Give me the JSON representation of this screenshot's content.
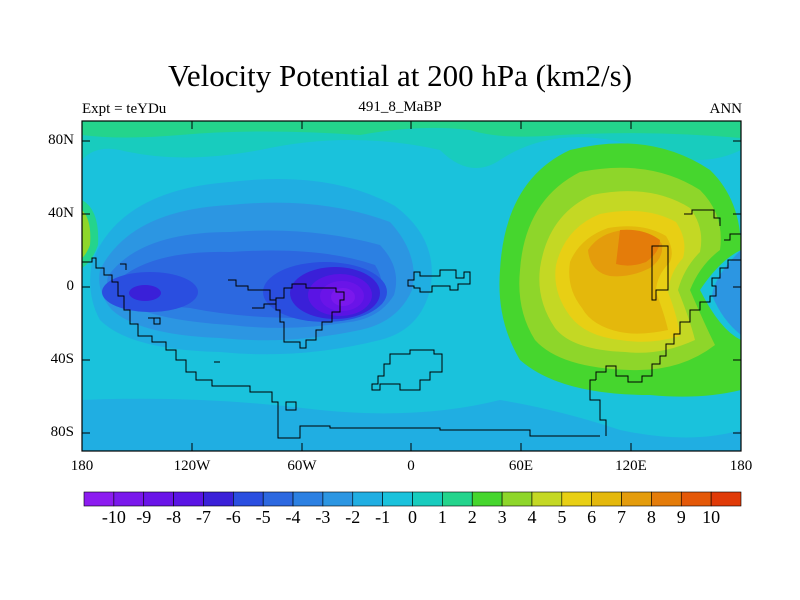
{
  "title": "Velocity Potential at 200 hPa (km2/s)",
  "subtitle": "491_8_MaBP",
  "left_label": "Expt = teYDu",
  "right_label": "ANN",
  "y_ticks": [
    "80N",
    "40N",
    "0",
    "40S",
    "80S"
  ],
  "x_ticks": [
    "180",
    "120W",
    "60W",
    "0",
    "60E",
    "120E",
    "180"
  ],
  "colorbar": {
    "labels": [
      "-10",
      "-9",
      "-8",
      "-7",
      "-6",
      "-5",
      "-4",
      "-3",
      "-2",
      "-1",
      "0",
      "1",
      "2",
      "3",
      "4",
      "5",
      "6",
      "7",
      "8",
      "9",
      "10"
    ],
    "colors": [
      "#8c1cf0",
      "#7a18ec",
      "#6a14e8",
      "#5a14e4",
      "#3a20d8",
      "#2a4ee0",
      "#2c68e0",
      "#2c80e2",
      "#2c96e2",
      "#20aee2",
      "#1ac2dc",
      "#18ccbe",
      "#24d48c",
      "#46d62e",
      "#8ed62a",
      "#c4d824",
      "#e8cf14",
      "#e4b80c",
      "#e49c0c",
      "#e47c0a",
      "#e45808",
      "#e03a08"
    ]
  },
  "map_data": {
    "projection": "cylindrical equidistant",
    "lon_range": [
      -180,
      180
    ],
    "lat_range": [
      -90,
      90
    ],
    "field": "velocity potential",
    "units": "km2/s",
    "contour_interval": 1,
    "features": [
      {
        "name": "minimum",
        "lon": -40,
        "lat": 5,
        "value": -10
      },
      {
        "name": "minimum",
        "lon": -140,
        "lat": 0,
        "value": -7
      },
      {
        "name": "maximum",
        "lon": 115,
        "lat": 15,
        "value": 9
      },
      {
        "name": "maximum",
        "lon": 115,
        "lat": -10,
        "value": 8
      }
    ]
  }
}
